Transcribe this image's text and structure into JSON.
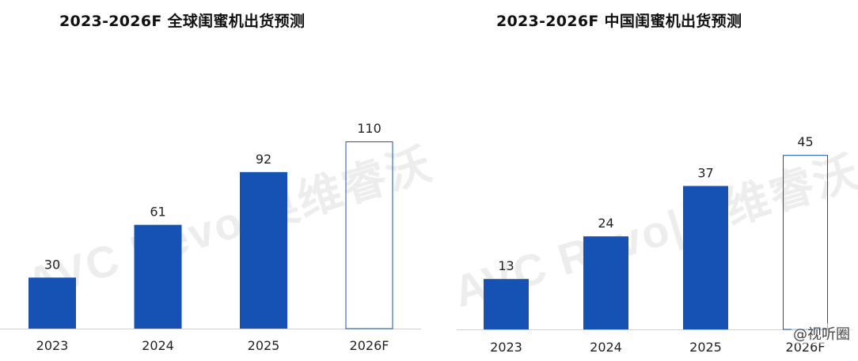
{
  "colors": {
    "bar": "#1652b4",
    "forecast_border": "#1652b4",
    "axis": "#d0d0d0",
    "label": "#222222"
  },
  "corner_watermark": "@视听圈",
  "chart_data": [
    {
      "type": "bar",
      "title": "2023-2026F  全球闺蜜机出货预测",
      "watermark": "AVC Revo|奥维睿沃",
      "categories": [
        "2023",
        "2024",
        "2025",
        "2026F"
      ],
      "values": [
        30,
        61,
        92,
        110
      ],
      "value_labels": [
        "30",
        "61",
        "92",
        "110"
      ],
      "forecast": [
        false,
        false,
        false,
        true
      ],
      "ylim": [
        0,
        130
      ],
      "grid": false,
      "legend": "none"
    },
    {
      "type": "bar",
      "title": "2023-2026F  中国闺蜜机出货预测",
      "watermark": "AVC Revo|奥维睿沃",
      "categories": [
        "2023",
        "2024",
        "2025",
        "2026F"
      ],
      "values": [
        13,
        24,
        37,
        45
      ],
      "value_labels": [
        "13",
        "24",
        "37",
        "45"
      ],
      "forecast": [
        false,
        false,
        false,
        true
      ],
      "ylim": [
        0,
        54
      ],
      "grid": false,
      "legend": "none"
    }
  ]
}
